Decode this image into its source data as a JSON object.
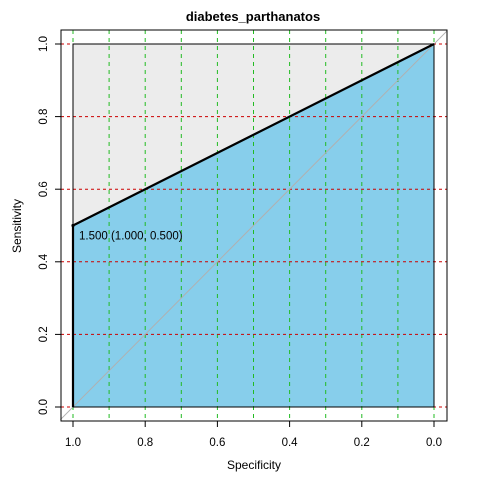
{
  "chart_data": {
    "type": "line",
    "title": "diabetes_parthanatos",
    "xlabel": "Specificity",
    "ylabel": "Sensitivity",
    "x_reversed": true,
    "xlim": [
      1.0,
      0.0
    ],
    "ylim": [
      0.0,
      1.0
    ],
    "x_ticks": [
      "1.0",
      "0.8",
      "0.6",
      "0.4",
      "0.2",
      "0.0"
    ],
    "y_ticks": [
      "0.0",
      "0.2",
      "0.4",
      "0.6",
      "0.8",
      "1.0"
    ],
    "x_tick_values": [
      1.0,
      0.8,
      0.6,
      0.4,
      0.2,
      0.0
    ],
    "y_tick_values": [
      0.0,
      0.2,
      0.4,
      0.6,
      0.8,
      1.0
    ],
    "grid": true,
    "grid_x_values": [
      1.0,
      0.9,
      0.8,
      0.7,
      0.6,
      0.5,
      0.4,
      0.3,
      0.2,
      0.1,
      0.0
    ],
    "grid_y_values": [
      0.0,
      0.2,
      0.4,
      0.6,
      0.8,
      1.0
    ],
    "series": [
      {
        "specificity": [
          1.0,
          1.0,
          0.0
        ],
        "sensitivity": [
          0.0,
          0.5,
          1.0
        ]
      }
    ],
    "auc_fill_color": "#87ceeb",
    "upper_fill_color": "#ececec",
    "roc_color": "#000000",
    "diagonal_color": "#b0b0b0",
    "grid_x_color": "#22bb22",
    "grid_y_color": "#cc0000",
    "annotation": {
      "text": "1.500 (1.000, 0.500)",
      "specificity": 1.0,
      "sensitivity": 0.5
    }
  }
}
